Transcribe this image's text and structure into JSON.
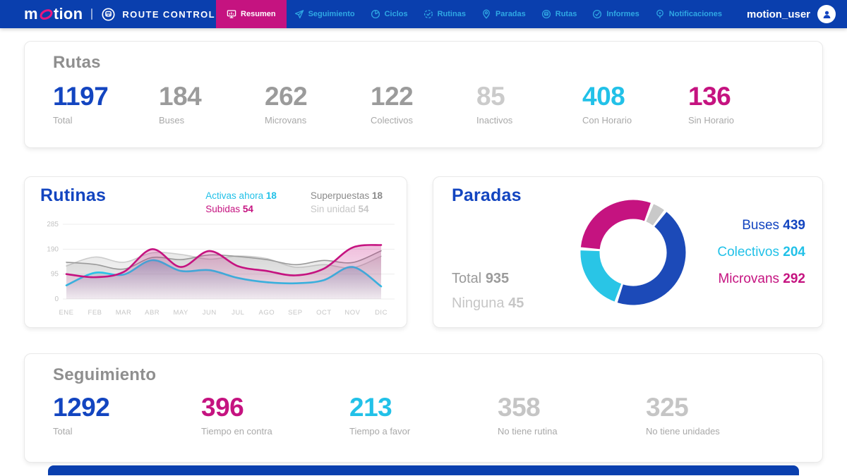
{
  "navbar": {
    "brand_m": "m",
    "brand_rest": "tion",
    "product": "ROUTE CONTROL",
    "items": [
      {
        "label": "Resumen",
        "active": true
      },
      {
        "label": "Seguimiento",
        "active": false
      },
      {
        "label": "Ciclos",
        "active": false
      },
      {
        "label": "Rutinas",
        "active": false
      },
      {
        "label": "Paradas",
        "active": false
      },
      {
        "label": "Rutas",
        "active": false
      },
      {
        "label": "Informes",
        "active": false
      },
      {
        "label": "Notificaciones",
        "active": false
      }
    ],
    "user": "motion_user",
    "icons": [
      "dashboard-monitor-icon",
      "send-icon",
      "cycle-pie-icon",
      "routine-check-icon",
      "map-pin-icon",
      "bus-circle-icon",
      "check-circle-icon",
      "location-ping-icon",
      "user-avatar-icon",
      "bus-badge-icon",
      "motion-swoosh-icon"
    ]
  },
  "colors": {
    "navbar_bg": "#0a3fae",
    "active_tab": "#c51380",
    "nav_text": "#2fa8e4",
    "blue": "#1345c0",
    "cyan": "#22c1e8",
    "magenta": "#c51380",
    "gray": "#9b9b9b",
    "light_gray": "#c7c7c7"
  },
  "rutas": {
    "title": "Rutas",
    "stats": [
      {
        "value": "1197",
        "label": "Total",
        "color": "#1345c0"
      },
      {
        "value": "184",
        "label": "Buses",
        "color": "#9b9b9b"
      },
      {
        "value": "262",
        "label": "Microvans",
        "color": "#9b9b9b"
      },
      {
        "value": "122",
        "label": "Colectivos",
        "color": "#9b9b9b"
      },
      {
        "value": "85",
        "label": "Inactivos",
        "color": "#cbcbcb"
      },
      {
        "value": "408",
        "label": "Con Horario",
        "color": "#22c1e8"
      },
      {
        "value": "136",
        "label": "Sin Horario",
        "color": "#c51380"
      }
    ]
  },
  "rutinas": {
    "title": "Rutinas",
    "legend": [
      {
        "label": "Activas ahora",
        "value": "18",
        "color": "#22c1e8"
      },
      {
        "label": "Superpuestas",
        "value": "18",
        "color": "#8b8b8b"
      },
      {
        "label": "Subidas",
        "value": "54",
        "color": "#c51380"
      },
      {
        "label": "Sin unidad",
        "value": "54",
        "color": "#c6c6c6"
      }
    ]
  },
  "paradas": {
    "title": "Paradas",
    "total_label": "Total",
    "total_value": "935",
    "none_label": "Ninguna",
    "none_value": "45",
    "legend": [
      {
        "label": "Buses",
        "value": "439",
        "color": "#1345c0"
      },
      {
        "label": "Colectivos",
        "value": "204",
        "color": "#22c1e8"
      },
      {
        "label": "Microvans",
        "value": "292",
        "color": "#c51380"
      }
    ]
  },
  "seguimiento": {
    "title": "Seguimiento",
    "stats": [
      {
        "value": "1292",
        "label": "Total",
        "color": "#1345c0"
      },
      {
        "value": "396",
        "label": "Tiempo en contra",
        "color": "#c51380"
      },
      {
        "value": "213",
        "label": "Tiempo a favor",
        "color": "#22c1e8"
      },
      {
        "value": "358",
        "label": "No tiene rutina",
        "color": "#c5c5c5"
      },
      {
        "value": "325",
        "label": "No tiene unidades",
        "color": "#c5c5c5"
      }
    ]
  },
  "chart_data": [
    {
      "type": "line",
      "title": "Rutinas",
      "categories": [
        "ENE",
        "FEB",
        "MAR",
        "ABR",
        "MAY",
        "JUN",
        "JUL",
        "AGO",
        "SEP",
        "OCT",
        "NOV",
        "DIC"
      ],
      "yticks": [
        0,
        95,
        190,
        285
      ],
      "ylim": [
        0,
        285
      ],
      "grid": true,
      "legend_position": "top-right",
      "series": [
        {
          "name": "Sin unidad",
          "color": "#cccccc",
          "fill": "grayLight",
          "width": 1.6,
          "values": [
            126,
            160,
            140,
            176,
            170,
            152,
            164,
            154,
            121,
            131,
            119,
            163
          ]
        },
        {
          "name": "Superpuestas",
          "color": "#9a9a9a",
          "fill": "grayDark",
          "width": 1.6,
          "values": [
            140,
            132,
            114,
            158,
            150,
            168,
            162,
            150,
            131,
            147,
            139,
            184
          ]
        },
        {
          "name": "Activas ahora",
          "color": "#29c3e8",
          "fill": "steel",
          "width": 2.6,
          "values": [
            52,
            100,
            93,
            148,
            107,
            110,
            80,
            64,
            60,
            72,
            122,
            48
          ]
        },
        {
          "name": "Subidas",
          "color": "#c51380",
          "fill": "pink",
          "width": 2.6,
          "values": [
            95,
            83,
            103,
            190,
            122,
            183,
            125,
            107,
            90,
            116,
            196,
            206
          ]
        }
      ]
    },
    {
      "type": "donut",
      "title": "Paradas",
      "total": 935,
      "segments": [
        {
          "label": "Microvans",
          "value": 292,
          "color": "#c51380"
        },
        {
          "label": "Ninguna",
          "value": 45,
          "color": "#c9c9c9"
        },
        {
          "label": "Buses",
          "value": 439,
          "color": "#1c4ab8"
        },
        {
          "label": "Colectivos",
          "value": 204,
          "color": "#29c5e6"
        }
      ]
    }
  ]
}
